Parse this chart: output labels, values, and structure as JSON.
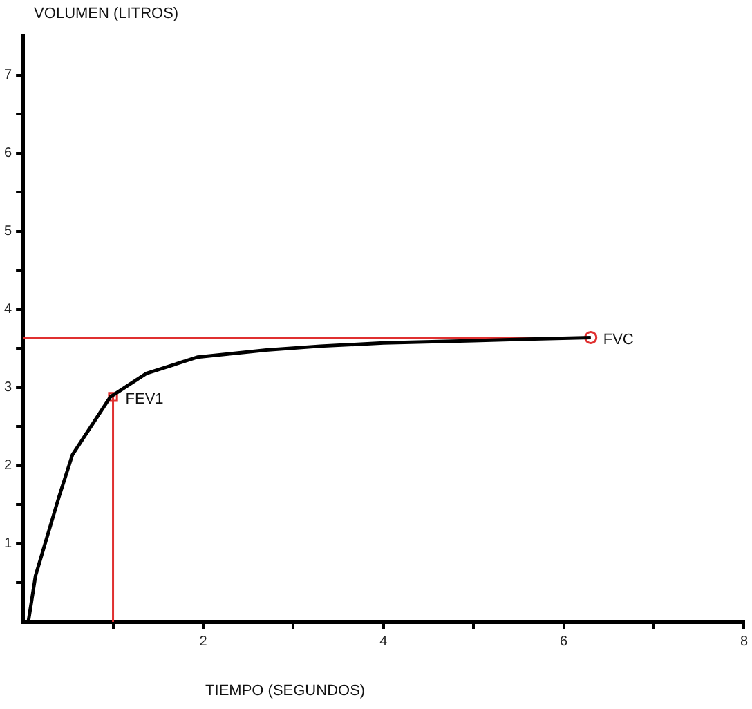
{
  "chart_data": {
    "type": "line",
    "xlabel": "TIEMPO (SEGUNDOS)",
    "ylabel": "VOLUMEN (LITROS)",
    "xlim": [
      0,
      8
    ],
    "ylim": [
      0,
      7.5
    ],
    "xticks": [
      {
        "value": 1,
        "label": null
      },
      2,
      {
        "value": 3,
        "label": null
      },
      4,
      {
        "value": 5,
        "label": null
      },
      6,
      {
        "value": 7,
        "label": null
      },
      8
    ],
    "yticks": [
      {
        "value": 0.5,
        "label": null
      },
      1,
      {
        "value": 1.5,
        "label": null
      },
      2,
      {
        "value": 2.5,
        "label": null
      },
      3,
      {
        "value": 3.5,
        "label": null
      },
      4,
      {
        "value": 4.5,
        "label": null
      },
      5,
      {
        "value": 5.5,
        "label": null
      },
      6,
      {
        "value": 6.5,
        "label": null
      },
      7
    ],
    "grid": false,
    "legend": false,
    "marker": "none",
    "line_style": "solid",
    "series": [
      {
        "color": "#000000",
        "x": [
          0.06,
          0.14,
          0.4,
          0.55,
          0.97,
          1.37,
          1.94,
          2.7,
          3.3,
          4,
          5,
          5.6,
          6.3
        ],
        "values": [
          0,
          0.59,
          1.6,
          2.14,
          2.88,
          3.18,
          3.39,
          3.48,
          3.53,
          3.57,
          3.6,
          3.62,
          3.64
        ]
      },
      {
        "color": "#e03030",
        "x": [
          0,
          6.3
        ],
        "values": [
          3.64,
          3.64
        ]
      },
      {
        "color": "#e03030",
        "x": [
          1,
          1
        ],
        "values": [
          0,
          2.88
        ]
      },
      {
        "type": "scatter",
        "color": "#e03030",
        "marker": "square",
        "x": [
          1
        ],
        "values": [
          2.88
        ]
      },
      {
        "type": "scatter",
        "color": "#e03030",
        "marker": "circle",
        "x": [
          6.3
        ],
        "values": [
          3.64
        ]
      }
    ],
    "annotations": [
      {
        "text": "FEV1",
        "x": 1,
        "y": 2.88
      },
      {
        "text": "FVC",
        "x": 6.3,
        "y": 3.64
      }
    ]
  }
}
